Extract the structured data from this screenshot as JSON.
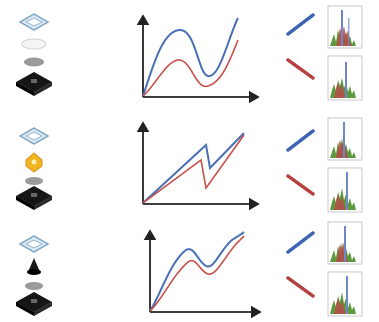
{
  "colors": {
    "upper_curve": "#4a6fb5",
    "lower_curve": "#c9504a",
    "axis": "#222222",
    "arrow_up": "#3d64b3",
    "arrow_down": "#b5413f",
    "hist_green": "#5a9a3a",
    "hist_red": "#b84a4a",
    "hist_blue": "#6f86c8",
    "hist_frame": "#bbbbbb",
    "switch_body": "#111111",
    "switch_cap": "#bcd7ea",
    "rubber_disc": "#999999",
    "actuator_yellow": "#f1b521"
  },
  "rows": [
    {
      "id": "row-1",
      "stack": [
        "keycap",
        "white-disc",
        "gray-disc",
        "switch-base"
      ],
      "curve_shape": "double-hump"
    },
    {
      "id": "row-2",
      "stack": [
        "keycap",
        "yellow-actuator",
        "gray-disc",
        "switch-base"
      ],
      "curve_shape": "sawtooth-drop"
    },
    {
      "id": "row-3",
      "stack": [
        "keycap",
        "black-plunger",
        "gray-disc",
        "switch-base"
      ],
      "curve_shape": "bump-dip"
    }
  ]
}
